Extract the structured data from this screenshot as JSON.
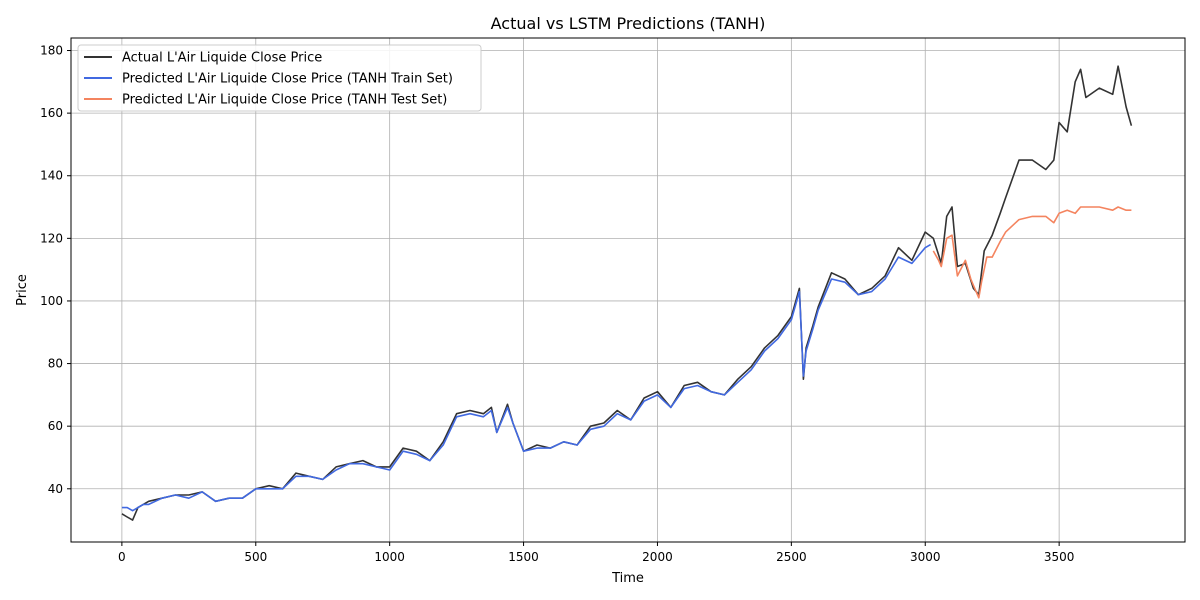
{
  "chart_data": {
    "type": "line",
    "title": "Actual vs LSTM Predictions (TANH)",
    "xlabel": "Time",
    "ylabel": "Price",
    "xlim": [
      -190,
      3970
    ],
    "ylim": [
      23,
      184
    ],
    "xticks": [
      0,
      500,
      1000,
      1500,
      2000,
      2500,
      3000,
      3500
    ],
    "yticks": [
      40,
      60,
      80,
      100,
      120,
      140,
      160,
      180
    ],
    "grid": true,
    "legend_position": "top-left",
    "series": [
      {
        "name": "Actual L'Air Liquide Close Price",
        "color": "#333333",
        "x": [
          0,
          20,
          40,
          60,
          80,
          100,
          150,
          200,
          250,
          300,
          350,
          400,
          450,
          500,
          550,
          600,
          650,
          700,
          750,
          800,
          850,
          900,
          950,
          1000,
          1050,
          1100,
          1150,
          1200,
          1250,
          1300,
          1350,
          1380,
          1400,
          1440,
          1460,
          1500,
          1550,
          1600,
          1650,
          1700,
          1750,
          1800,
          1850,
          1900,
          1950,
          2000,
          2050,
          2100,
          2150,
          2200,
          2250,
          2300,
          2350,
          2400,
          2450,
          2500,
          2530,
          2545,
          2555,
          2580,
          2600,
          2650,
          2700,
          2750,
          2800,
          2850,
          2900,
          2950,
          3000,
          3030,
          3060,
          3080,
          3100,
          3120,
          3150,
          3180,
          3200,
          3220,
          3250,
          3280,
          3300,
          3350,
          3400,
          3450,
          3480,
          3500,
          3530,
          3560,
          3580,
          3600,
          3650,
          3700,
          3720,
          3750,
          3770
        ],
        "values": [
          32,
          31,
          30,
          34,
          35,
          36,
          37,
          38,
          38,
          39,
          36,
          37,
          37,
          40,
          41,
          40,
          45,
          44,
          43,
          47,
          48,
          49,
          47,
          47,
          53,
          52,
          49,
          55,
          64,
          65,
          64,
          66,
          58,
          67,
          61,
          52,
          54,
          53,
          55,
          54,
          60,
          61,
          65,
          62,
          69,
          71,
          66,
          73,
          74,
          71,
          70,
          75,
          79,
          85,
          89,
          95,
          104,
          75,
          85,
          92,
          98,
          109,
          107,
          102,
          104,
          108,
          117,
          113,
          122,
          120,
          112,
          127,
          130,
          111,
          112,
          104,
          102,
          116,
          121,
          128,
          133,
          145,
          145,
          142,
          145,
          157,
          154,
          170,
          174,
          165,
          168,
          166,
          175,
          162,
          156
        ]
      },
      {
        "name": "Predicted L'Air Liquide Close Price (TANH Train Set)",
        "color": "#4169e1",
        "x": [
          0,
          20,
          40,
          60,
          80,
          100,
          150,
          200,
          250,
          300,
          350,
          400,
          450,
          500,
          550,
          600,
          650,
          700,
          750,
          800,
          850,
          900,
          950,
          1000,
          1050,
          1100,
          1150,
          1200,
          1250,
          1300,
          1350,
          1380,
          1400,
          1440,
          1460,
          1500,
          1550,
          1600,
          1650,
          1700,
          1750,
          1800,
          1850,
          1900,
          1950,
          2000,
          2050,
          2100,
          2150,
          2200,
          2250,
          2300,
          2350,
          2400,
          2450,
          2500,
          2530,
          2545,
          2555,
          2580,
          2600,
          2650,
          2700,
          2750,
          2800,
          2850,
          2900,
          2950,
          3000,
          3020
        ],
        "values": [
          34,
          34,
          33,
          34,
          35,
          35,
          37,
          38,
          37,
          39,
          36,
          37,
          37,
          40,
          40,
          40,
          44,
          44,
          43,
          46,
          48,
          48,
          47,
          46,
          52,
          51,
          49,
          54,
          63,
          64,
          63,
          65,
          58,
          66,
          61,
          52,
          53,
          53,
          55,
          54,
          59,
          60,
          64,
          62,
          68,
          70,
          66,
          72,
          73,
          71,
          70,
          74,
          78,
          84,
          88,
          94,
          103,
          76,
          84,
          91,
          97,
          107,
          106,
          102,
          103,
          107,
          114,
          112,
          117,
          118
        ]
      },
      {
        "name": "Predicted L'Air Liquide Close Price (TANH Test Set)",
        "color": "#f4845f",
        "x": [
          3030,
          3050,
          3060,
          3080,
          3100,
          3120,
          3150,
          3170,
          3180,
          3200,
          3210,
          3230,
          3250,
          3280,
          3300,
          3350,
          3400,
          3450,
          3480,
          3500,
          3530,
          3560,
          3580,
          3600,
          3650,
          3700,
          3720,
          3750,
          3770
        ],
        "values": [
          116,
          113,
          111,
          120,
          121,
          108,
          113,
          107,
          105,
          101,
          106,
          114,
          114,
          119,
          122,
          126,
          127,
          127,
          125,
          128,
          129,
          128,
          130,
          130,
          130,
          129,
          130,
          129,
          129
        ]
      }
    ]
  }
}
